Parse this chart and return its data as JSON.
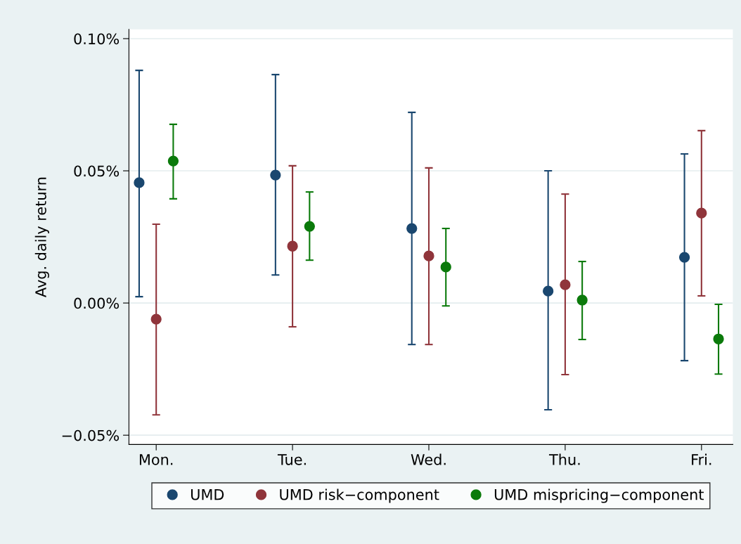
{
  "chart_data": {
    "type": "scatter",
    "ylabel": "Avg. daily return",
    "categories": [
      "Mon.",
      "Tue.",
      "Wed.",
      "Thu.",
      "Fri."
    ],
    "series": [
      {
        "name": "UMD",
        "color": "#1a476f",
        "values": [
          0.0455,
          0.0484,
          0.0282,
          0.0045,
          0.0173
        ],
        "errors": [
          [
            0.0024,
            0.088
          ],
          [
            0.0106,
            0.0864
          ],
          [
            -0.0157,
            0.0721
          ],
          [
            -0.0404,
            0.05
          ],
          [
            -0.0218,
            0.0564
          ]
        ]
      },
      {
        "name": "UMD risk−component",
        "color": "#90353b",
        "values": [
          -0.0061,
          0.0215,
          0.0178,
          0.0069,
          0.034
        ],
        "errors": [
          [
            -0.0423,
            0.0298
          ],
          [
            -0.009,
            0.0519
          ],
          [
            -0.0157,
            0.0511
          ],
          [
            -0.0271,
            0.0412
          ],
          [
            0.0027,
            0.0652
          ]
        ]
      },
      {
        "name": "UMD mispricing−component",
        "color": "#0b7a0b",
        "values": [
          0.0537,
          0.029,
          0.0136,
          0.0011,
          -0.0136
        ],
        "errors": [
          [
            0.0394,
            0.0676
          ],
          [
            0.0162,
            0.042
          ],
          [
            -0.0011,
            0.0282
          ],
          [
            -0.0138,
            0.0157
          ],
          [
            -0.0269,
            -0.0005
          ]
        ]
      }
    ],
    "ylim": [
      -0.0535,
      0.1035
    ],
    "yticks": [
      {
        "value": -0.05,
        "label": "−0.05%"
      },
      {
        "value": 0,
        "label": "0.00%"
      },
      {
        "value": 0.05,
        "label": "0.05%"
      },
      {
        "value": 0.1,
        "label": "0.10%"
      }
    ],
    "grid": "y",
    "legend": "bottom",
    "marker": "circle"
  }
}
